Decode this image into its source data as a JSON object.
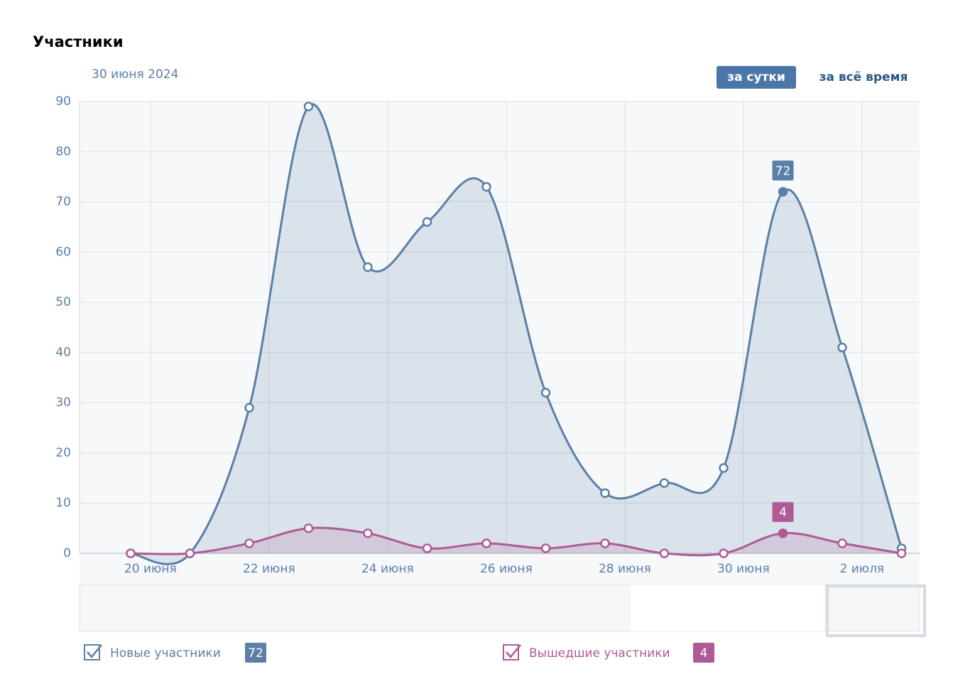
{
  "chart_data": {
    "type": "area",
    "title": "Участники",
    "subtitle": "30 июня 2024",
    "buttons": [
      "за сутки",
      "за всё время"
    ],
    "categories": [
      "20 июня",
      null,
      "22 июня",
      null,
      "24 июня",
      null,
      "26 июня",
      null,
      "28 июня",
      null,
      "30 июня",
      null,
      "2 июля",
      null
    ],
    "series": [
      {
        "name": "Новые участники",
        "color": "#5b7fa6",
        "values": [
          0,
          0,
          29,
          89,
          57,
          66,
          73,
          32,
          12,
          14,
          17,
          72,
          41,
          1
        ],
        "value_labels": [
          null,
          null,
          null,
          null,
          null,
          null,
          null,
          null,
          null,
          null,
          null,
          "72",
          null,
          null
        ]
      },
      {
        "name": "Вышедшие участники",
        "color": "#b05a95",
        "values": [
          0,
          0,
          2,
          5,
          4,
          1,
          2,
          1,
          2,
          0,
          0,
          4,
          2,
          0
        ],
        "value_labels": [
          null,
          null,
          null,
          null,
          null,
          null,
          null,
          null,
          null,
          null,
          null,
          "4",
          null,
          null
        ]
      }
    ],
    "ylim": [
      0,
      90
    ],
    "yticks": [
      0,
      10,
      20,
      30,
      40,
      50,
      60,
      70,
      80,
      90
    ],
    "grid": true
  }
}
